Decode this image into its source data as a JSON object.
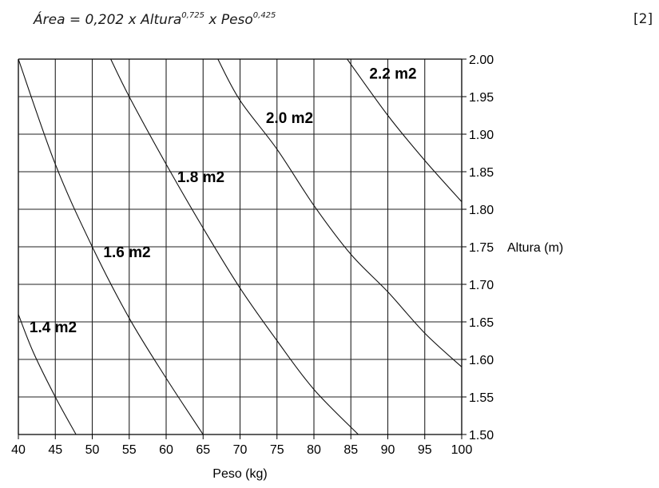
{
  "formula": {
    "area": "Área",
    "eq": " = 0,202 x ",
    "height_word": "Altura",
    "height_exp": "0,725",
    "times": " x ",
    "weight_word": "Peso",
    "weight_exp": "0,425",
    "ref": "[2]"
  },
  "chart_data": {
    "type": "line",
    "xlabel": "Peso (kg)",
    "ylabel": "Altura (m)",
    "xlim": [
      40,
      100
    ],
    "ylim": [
      1.5,
      2.0
    ],
    "x_ticks": [
      "40",
      "45",
      "50",
      "55",
      "60",
      "65",
      "70",
      "75",
      "80",
      "85",
      "90",
      "95",
      "100"
    ],
    "y_ticks": [
      "1.50",
      "1.55",
      "1.60",
      "1.65",
      "1.70",
      "1.75",
      "1.80",
      "1.85",
      "1.90",
      "1.95",
      "2.00"
    ],
    "grid": true,
    "series": [
      {
        "name": "1.4 m2",
        "points": [
          [
            40.0,
            1.66
          ],
          [
            42.0,
            1.61
          ],
          [
            45.0,
            1.55
          ],
          [
            47.8,
            1.5
          ]
        ]
      },
      {
        "name": "1.6 m2",
        "points": [
          [
            40.0,
            2.0
          ],
          [
            45.0,
            1.86
          ],
          [
            50.0,
            1.75
          ],
          [
            55.0,
            1.655
          ],
          [
            60.0,
            1.575
          ],
          [
            65.0,
            1.5
          ]
        ]
      },
      {
        "name": "1.8 m2",
        "points": [
          [
            52.5,
            2.0
          ],
          [
            55.0,
            1.95
          ],
          [
            60.0,
            1.86
          ],
          [
            65.0,
            1.775
          ],
          [
            70.0,
            1.695
          ],
          [
            75.0,
            1.625
          ],
          [
            80.0,
            1.56
          ],
          [
            86.0,
            1.5
          ]
        ]
      },
      {
        "name": "2.0 m2",
        "points": [
          [
            67.0,
            2.0
          ],
          [
            70.0,
            1.945
          ],
          [
            75.0,
            1.88
          ],
          [
            80.0,
            1.805
          ],
          [
            85.0,
            1.74
          ],
          [
            90.0,
            1.69
          ],
          [
            95.0,
            1.635
          ],
          [
            100.0,
            1.59
          ]
        ]
      },
      {
        "name": "2.2 m2",
        "points": [
          [
            84.5,
            2.0
          ],
          [
            90.0,
            1.925
          ],
          [
            95.0,
            1.865
          ],
          [
            100.0,
            1.81
          ]
        ]
      }
    ],
    "labels": [
      {
        "text": "1.4 m2",
        "x": 41.5,
        "y": 1.636
      },
      {
        "text": "1.6 m2",
        "x": 51.5,
        "y": 1.736
      },
      {
        "text": "1.8 m2",
        "x": 61.5,
        "y": 1.836
      },
      {
        "text": "2.0 m2",
        "x": 73.5,
        "y": 1.915
      },
      {
        "text": "2.2 m2",
        "x": 87.5,
        "y": 1.974
      }
    ]
  }
}
